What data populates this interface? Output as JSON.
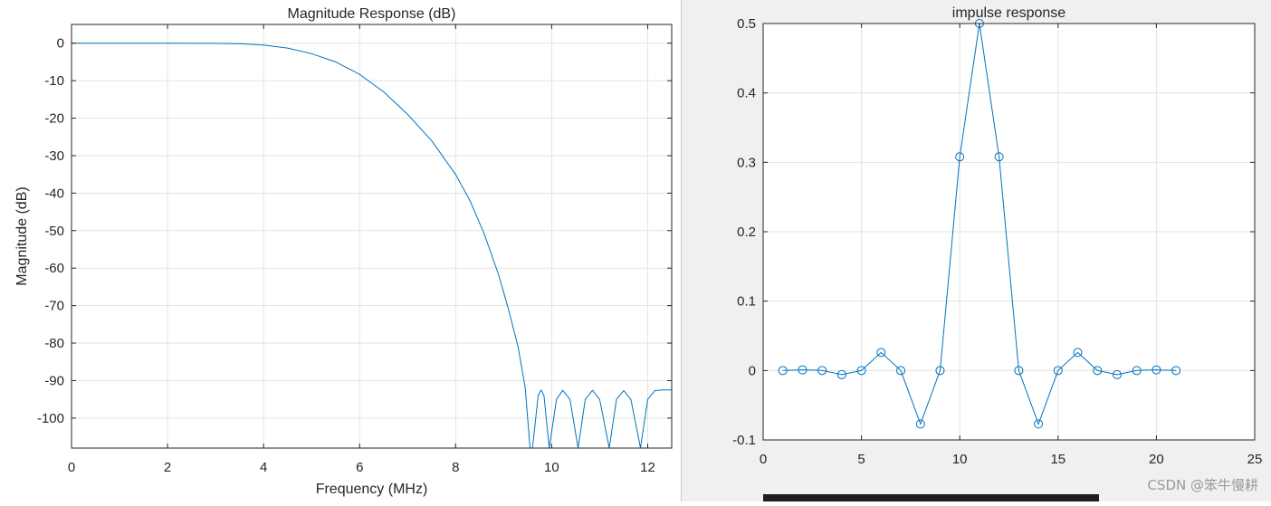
{
  "watermark": "CSDN @笨牛慢耕",
  "chart_data": [
    {
      "type": "line",
      "title": "Magnitude Response (dB)",
      "xlabel": "Frequency (MHz)",
      "ylabel": "Magnitude (dB)",
      "xlim": [
        0,
        12.5
      ],
      "ylim": [
        -108,
        5
      ],
      "xticks": [
        0,
        2,
        4,
        6,
        8,
        10,
        12
      ],
      "yticks": [
        0,
        -10,
        -20,
        -30,
        -40,
        -50,
        -60,
        -70,
        -80,
        -90,
        -100
      ],
      "grid": true,
      "color": "#0072bd",
      "series": [
        {
          "x": [
            0,
            1,
            2,
            3,
            3.5,
            4,
            4.5,
            5,
            5.5,
            6,
            6.5,
            7,
            7.5,
            8,
            8.3,
            8.6,
            8.9,
            9.1,
            9.3,
            9.45,
            9.55
          ],
          "values": [
            0,
            0,
            0,
            -0.05,
            -0.15,
            -0.5,
            -1.3,
            -2.8,
            -5,
            -8.3,
            -13,
            -19,
            -26,
            -35,
            -42,
            -51,
            -62,
            -71,
            -81,
            -92,
            -108
          ]
        },
        {
          "x": [
            9.6,
            9.72,
            9.78,
            9.84,
            9.95
          ],
          "values": [
            -108,
            -94,
            -92.5,
            -94,
            -108
          ]
        },
        {
          "x": [
            9.95,
            10.1,
            10.23,
            10.38,
            10.55
          ],
          "values": [
            -108,
            -95,
            -92.6,
            -95,
            -108
          ]
        },
        {
          "x": [
            10.55,
            10.7,
            10.85,
            11.0,
            11.2
          ],
          "values": [
            -108,
            -95,
            -92.6,
            -95,
            -108
          ]
        },
        {
          "x": [
            11.2,
            11.35,
            11.5,
            11.65,
            11.85
          ],
          "values": [
            -108,
            -95,
            -92.7,
            -95,
            -108
          ]
        },
        {
          "x": [
            11.85,
            12.0,
            12.15,
            12.3,
            12.5
          ],
          "values": [
            -108,
            -95,
            -92.7,
            -92.5,
            -92.5
          ]
        }
      ]
    },
    {
      "type": "line",
      "title": "impulse response",
      "xlabel": "",
      "ylabel": "",
      "xlim": [
        0,
        25
      ],
      "ylim": [
        -0.1,
        0.5
      ],
      "xticks": [
        0,
        5,
        10,
        15,
        20,
        25
      ],
      "yticks": [
        0.5,
        0.4,
        0.3,
        0.2,
        0.1,
        0,
        -0.1
      ],
      "grid": true,
      "color": "#0072bd",
      "marker": "o",
      "x": [
        1,
        2,
        3,
        4,
        5,
        6,
        7,
        8,
        9,
        10,
        11,
        12,
        13,
        14,
        15,
        16,
        17,
        18,
        19,
        20,
        21
      ],
      "series": [
        {
          "values": [
            0,
            0.001,
            0,
            -0.006,
            0,
            0.026,
            0,
            -0.077,
            0,
            0.308,
            0.5,
            0.308,
            0,
            -0.077,
            0,
            0.026,
            0,
            -0.006,
            0,
            0.001,
            0
          ]
        }
      ]
    }
  ]
}
